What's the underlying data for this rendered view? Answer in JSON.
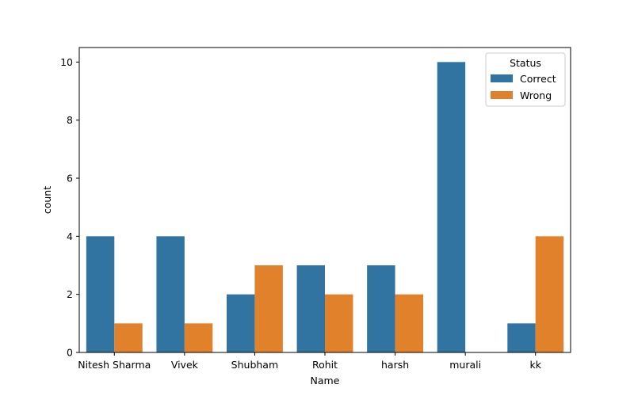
{
  "chart_data": {
    "type": "bar",
    "title": "",
    "xlabel": "Name",
    "ylabel": "count",
    "categories": [
      "Nitesh Sharma",
      "Vivek",
      "Shubham",
      "Rohit",
      "harsh",
      "murali",
      "kk"
    ],
    "series": [
      {
        "name": "Correct",
        "color": "#3274a1",
        "values": [
          4,
          4,
          2,
          3,
          3,
          10,
          1
        ]
      },
      {
        "name": "Wrong",
        "color": "#e1812c",
        "values": [
          1,
          1,
          3,
          2,
          2,
          0,
          4
        ]
      }
    ],
    "ylim": [
      0,
      10.5
    ],
    "yticks": [
      "0",
      "2",
      "4",
      "6",
      "8",
      "10"
    ],
    "legend": {
      "title": "Status",
      "placement": "top-right"
    },
    "grid": false
  }
}
